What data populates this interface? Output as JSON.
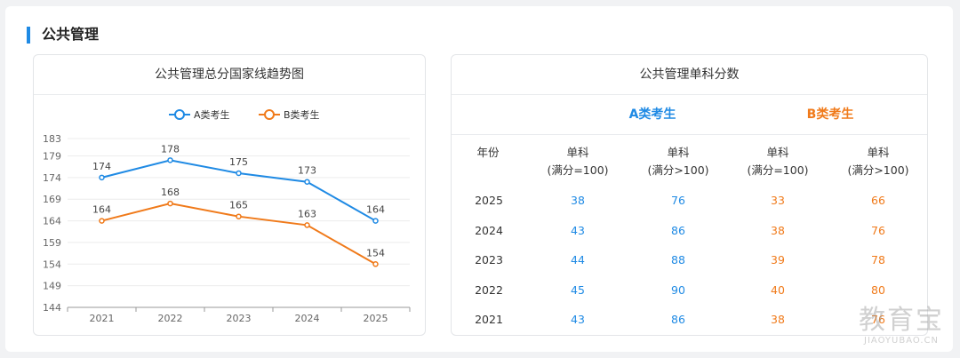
{
  "section": {
    "title": "公共管理"
  },
  "chart_card": {
    "title": "公共管理总分国家线趋势图"
  },
  "chart_data": {
    "type": "line",
    "title": "公共管理总分国家线趋势图",
    "categories": [
      "2021",
      "2022",
      "2023",
      "2024",
      "2025"
    ],
    "series": [
      {
        "name": "A类考生",
        "values": [
          174,
          178,
          175,
          173,
          164
        ],
        "color": "#1f8ae4"
      },
      {
        "name": "B类考生",
        "values": [
          164,
          168,
          165,
          163,
          154
        ],
        "color": "#f07a1a"
      }
    ],
    "y_ticks": [
      144,
      149,
      154,
      159,
      164,
      169,
      174,
      179,
      183
    ],
    "ylim": [
      144,
      183
    ],
    "legend_position": "top-center",
    "grid": true
  },
  "table_card": {
    "title": "公共管理单科分数",
    "group_a": "A类考生",
    "group_b": "B类考生",
    "year_header": "年份",
    "col1": "单科",
    "col1_sub": "(满分=100)",
    "col2": "单科",
    "col2_sub": "(满分>100)",
    "rows": [
      {
        "year": "2025",
        "a1": "38",
        "a2": "76",
        "b1": "33",
        "b2": "66"
      },
      {
        "year": "2024",
        "a1": "43",
        "a2": "86",
        "b1": "38",
        "b2": "76"
      },
      {
        "year": "2023",
        "a1": "44",
        "a2": "88",
        "b1": "39",
        "b2": "78"
      },
      {
        "year": "2022",
        "a1": "45",
        "a2": "90",
        "b1": "40",
        "b2": "80"
      },
      {
        "year": "2021",
        "a1": "43",
        "a2": "86",
        "b1": "38",
        "b2": "76"
      }
    ]
  },
  "watermark": {
    "main": "教育宝",
    "sub": "JIAOYUBAO.CN"
  }
}
